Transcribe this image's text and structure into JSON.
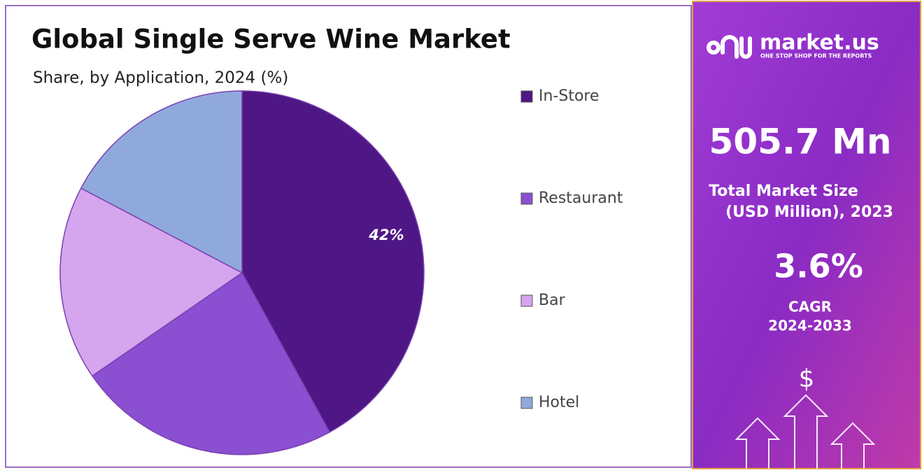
{
  "chart_data": {
    "type": "pie",
    "title": "Global Single Serve Wine Market",
    "subtitle": "Share, by Application, 2024 (%)",
    "categories": [
      "In-Store",
      "Restaurant",
      "Bar",
      "Hotel"
    ],
    "values": [
      42,
      23.4,
      17.3,
      17.3
    ],
    "value_labels": [
      "42%",
      null,
      null,
      null
    ],
    "colors": [
      "#4e1785",
      "#8b4fd1",
      "#d5a5ee",
      "#8fa9dd"
    ],
    "legend": "right"
  },
  "side_panel": {
    "brand": "market.us",
    "tagline": "ONE STOP SHOP FOR THE REPORTS",
    "market_size": "505.7 Mn",
    "market_size_label_1": "Total Market Size",
    "market_size_label_2": "(USD Million), 2023",
    "cagr": "3.6%",
    "cagr_label_1": "CAGR",
    "cagr_label_2": "2024-2033",
    "icon_symbol": "$"
  }
}
